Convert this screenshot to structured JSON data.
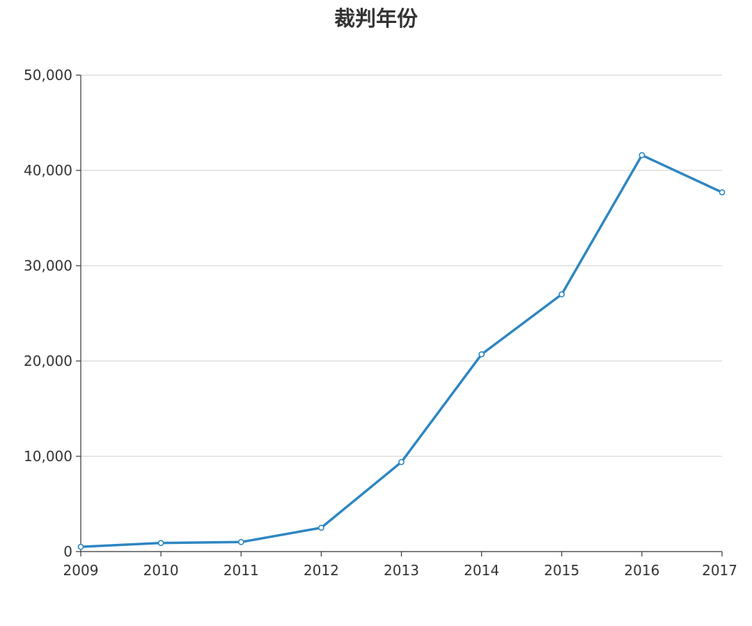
{
  "chart_data": {
    "type": "line",
    "title": "裁判年份",
    "xlabel": "",
    "ylabel": "",
    "categories": [
      "2009",
      "2010",
      "2011",
      "2012",
      "2013",
      "2014",
      "2015",
      "2016",
      "2017"
    ],
    "series": [
      {
        "values": [
          500,
          900,
          1000,
          2500,
          9400,
          20700,
          27000,
          41600,
          37700
        ],
        "color": "#2e86c1"
      }
    ],
    "ylim": [
      0,
      50000
    ],
    "yticks": [
      0,
      10000,
      20000,
      30000,
      40000,
      50000
    ],
    "ytick_labels": [
      "0",
      "10,000",
      "20,000",
      "30,000",
      "40,000",
      "50,000"
    ],
    "grid": true,
    "legend": "none"
  }
}
